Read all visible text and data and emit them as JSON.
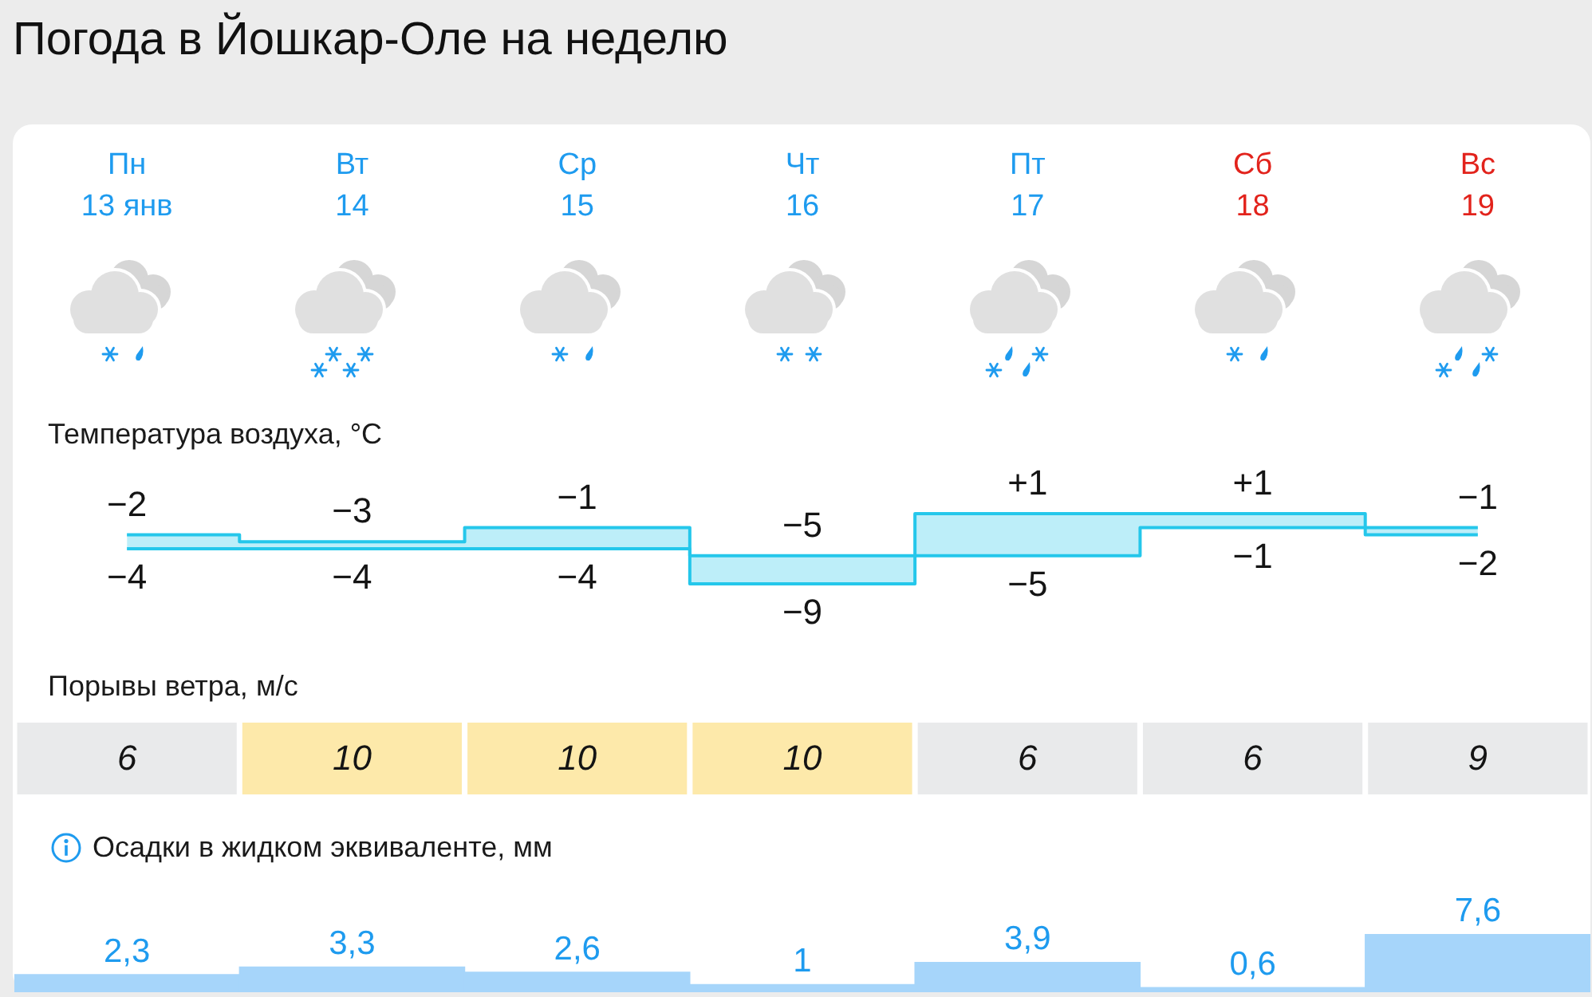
{
  "chart_data": [
    {
      "type": "step",
      "title": "Погода в Йошкар-Оле на неделю",
      "subtitle": "Температура воздуха, °C",
      "categories": [
        "Пн\n13 янв",
        "Вт\n14",
        "Ср\n15",
        "Чт\n16",
        "Пт\n17",
        "Сб\n18",
        "Вс\n19"
      ],
      "series": [
        {
          "color": "#25c7eb",
          "values": [
            -2,
            -3,
            -1,
            -5,
            1,
            1,
            -1
          ],
          "value_labels": [
            "−2",
            "−3",
            "−1",
            "−5",
            "+1",
            "+1",
            "−1"
          ]
        },
        {
          "color": "#25c7eb",
          "values": [
            -4,
            -4,
            -4,
            -9,
            -5,
            -1,
            -2
          ],
          "value_labels": [
            "−4",
            "−4",
            "−4",
            "−9",
            "−5",
            "−1",
            "−2"
          ]
        }
      ],
      "tick_labels": "x"
    },
    {
      "type": "heatmap",
      "title": "Порывы ветра, м/с",
      "categories": [
        null,
        null,
        null,
        null,
        null,
        null,
        null
      ],
      "y_categories": [
        null
      ],
      "cells": [
        [
          6,
          10,
          10,
          10,
          6,
          6,
          9
        ]
      ],
      "colors": [
        "#e9eaeb",
        "#fde9aa",
        "#fde9aa",
        "#fde9aa",
        "#e9eaeb",
        "#e9eaeb",
        "#e9eaeb"
      ],
      "data_labels": true,
      "tick_labels": false
    },
    {
      "type": "bar",
      "title": "Осадки в жидком эквиваленте, мм",
      "categories": [
        null,
        null,
        null,
        null,
        null,
        null,
        null
      ],
      "values": [
        2.3,
        3.3,
        2.6,
        1,
        3.9,
        0.6,
        7.6
      ],
      "color": "#a6d5fa",
      "value_labels": [
        "2,3",
        "3,3",
        "2,6",
        "1",
        "3,9",
        "0,6",
        "7,6"
      ],
      "tick_labels": false
    }
  ]
}
